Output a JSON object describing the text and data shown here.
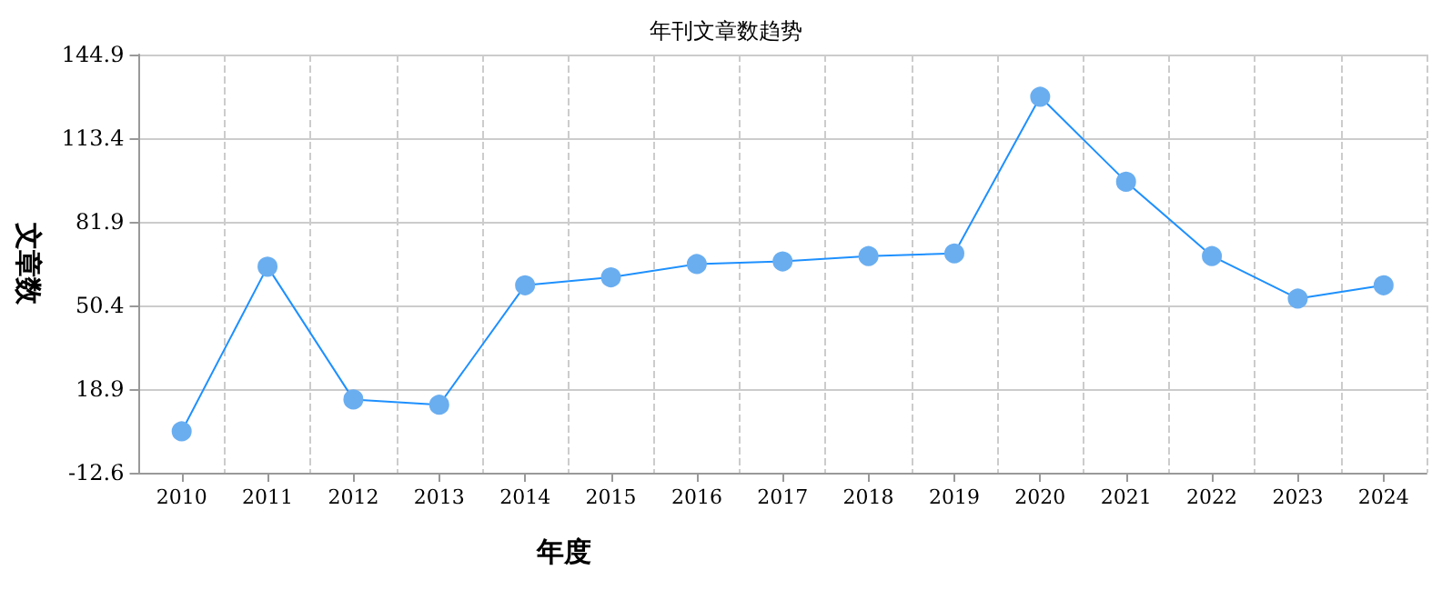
{
  "chart_data": {
    "type": "line",
    "title": "年刊文章数趋势",
    "xlabel": "年度",
    "ylabel": "文章数",
    "categories": [
      "2010",
      "2011",
      "2012",
      "2013",
      "2014",
      "2015",
      "2016",
      "2017",
      "2018",
      "2019",
      "2020",
      "2021",
      "2022",
      "2023",
      "2024"
    ],
    "series": [
      {
        "color": "#1e90ff",
        "values": [
          3,
          65,
          15,
          13,
          58,
          61,
          66,
          67,
          69,
          70,
          129,
          97,
          69,
          53,
          58
        ]
      }
    ],
    "ylim": [
      -12.6,
      144.9
    ],
    "yticks": [
      -12.6,
      18.9,
      50.4,
      81.9,
      113.4,
      144.9
    ],
    "grid": true,
    "marker": "circle",
    "line_style": "solid"
  }
}
